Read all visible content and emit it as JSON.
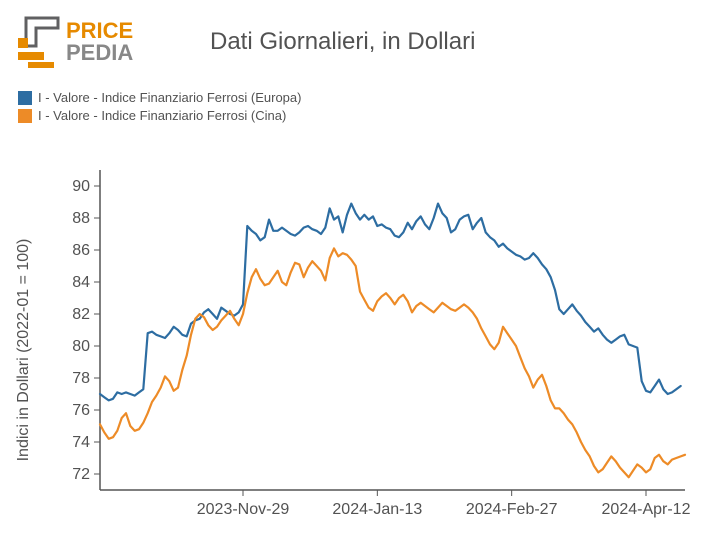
{
  "logo": {
    "text_top": "PRICE",
    "text_bottom": "PEDIA",
    "color_top": "#e68a00",
    "color_bottom": "#888888",
    "mark_dark": "#606062",
    "mark_orange": "#e68a00"
  },
  "title": "Dati Giornalieri, in Dollari",
  "legend": {
    "items": [
      {
        "label": "I - Valore - Indice Finanziario Ferrosi (Europa)",
        "color": "#2d6da2"
      },
      {
        "label": "I - Valore - Indice Finanziario Ferrosi (Cina)",
        "color": "#ed8b27"
      }
    ]
  },
  "chart": {
    "type": "line",
    "background_color": "#ffffff",
    "axis_color": "#555555",
    "text_color": "#525252",
    "ylabel": "Indici in Dollari (2022-01 = 100)",
    "ylim": [
      71,
      91
    ],
    "yticks": [
      72,
      74,
      76,
      78,
      80,
      82,
      84,
      86,
      88,
      90
    ],
    "x_count": 136,
    "xticks": [
      {
        "idx": 33,
        "label": "2023-Nov-29"
      },
      {
        "idx": 64,
        "label": "2024-Jan-13"
      },
      {
        "idx": 95,
        "label": "2024-Feb-27"
      },
      {
        "idx": 126,
        "label": "2024-Apr-12"
      }
    ],
    "line_width": 2.2,
    "tick_fontsize": 16,
    "series": [
      {
        "name": "europa",
        "color": "#2d6da2",
        "values": [
          77.0,
          76.8,
          76.6,
          76.7,
          77.1,
          77.0,
          77.1,
          77.0,
          76.9,
          77.1,
          77.3,
          80.8,
          80.9,
          80.7,
          80.6,
          80.5,
          80.8,
          81.2,
          81.0,
          80.7,
          80.6,
          81.4,
          81.6,
          81.7,
          82.1,
          82.3,
          82.0,
          81.7,
          82.4,
          82.2,
          82.0,
          81.9,
          82.1,
          82.6,
          87.5,
          87.2,
          87.0,
          86.6,
          86.8,
          87.9,
          87.2,
          87.2,
          87.4,
          87.2,
          87.0,
          86.9,
          87.1,
          87.4,
          87.5,
          87.3,
          87.2,
          87.0,
          87.4,
          88.6,
          87.9,
          88.1,
          87.1,
          88.2,
          88.9,
          88.3,
          87.9,
          88.2,
          87.9,
          88.1,
          87.5,
          87.6,
          87.4,
          87.3,
          86.9,
          86.8,
          87.1,
          87.7,
          87.3,
          87.8,
          88.1,
          87.6,
          87.3,
          88.0,
          88.9,
          88.3,
          88.0,
          87.1,
          87.3,
          87.9,
          88.1,
          88.2,
          87.3,
          87.7,
          88.0,
          87.1,
          86.8,
          86.6,
          86.2,
          86.4,
          86.1,
          85.9,
          85.7,
          85.6,
          85.4,
          85.5,
          85.8,
          85.5,
          85.1,
          84.8,
          84.3,
          83.5,
          82.3,
          82.0,
          82.3,
          82.6,
          82.2,
          81.9,
          81.5,
          81.2,
          80.9,
          81.1,
          80.7,
          80.4,
          80.2,
          80.4,
          80.6,
          80.7,
          80.1,
          80.0,
          79.9,
          77.8,
          77.2,
          77.1,
          77.5,
          77.9,
          77.3,
          77.0,
          77.1,
          77.3,
          77.5
        ]
      },
      {
        "name": "cina",
        "color": "#ed8b27",
        "values": [
          75.1,
          74.6,
          74.2,
          74.3,
          74.7,
          75.5,
          75.8,
          75.0,
          74.7,
          74.8,
          75.2,
          75.8,
          76.5,
          76.9,
          77.4,
          78.1,
          77.8,
          77.2,
          77.4,
          78.5,
          79.4,
          80.7,
          81.7,
          82.0,
          81.8,
          81.3,
          81.0,
          81.2,
          81.6,
          81.9,
          82.2,
          81.7,
          81.3,
          82.0,
          83.3,
          84.3,
          84.8,
          84.2,
          83.8,
          83.9,
          84.3,
          84.7,
          84.0,
          83.8,
          84.6,
          85.2,
          85.1,
          84.3,
          84.9,
          85.3,
          85.0,
          84.7,
          84.1,
          85.5,
          86.1,
          85.6,
          85.8,
          85.7,
          85.4,
          85.0,
          83.4,
          82.9,
          82.4,
          82.2,
          82.8,
          83.1,
          83.3,
          83.0,
          82.6,
          83.0,
          83.2,
          82.8,
          82.1,
          82.5,
          82.7,
          82.5,
          82.3,
          82.1,
          82.4,
          82.7,
          82.5,
          82.3,
          82.2,
          82.4,
          82.6,
          82.4,
          82.1,
          81.7,
          81.1,
          80.6,
          80.1,
          79.8,
          80.2,
          81.2,
          80.8,
          80.4,
          80.0,
          79.3,
          78.6,
          78.1,
          77.4,
          77.9,
          78.2,
          77.5,
          76.6,
          76.1,
          76.1,
          75.8,
          75.4,
          75.1,
          74.6,
          74.0,
          73.5,
          73.1,
          72.5,
          72.1,
          72.3,
          72.7,
          73.1,
          72.8,
          72.4,
          72.1,
          71.8,
          72.2,
          72.6,
          72.4,
          72.1,
          72.3,
          73.0,
          73.2,
          72.8,
          72.6,
          72.9,
          73.0,
          73.1,
          73.2
        ]
      }
    ]
  }
}
